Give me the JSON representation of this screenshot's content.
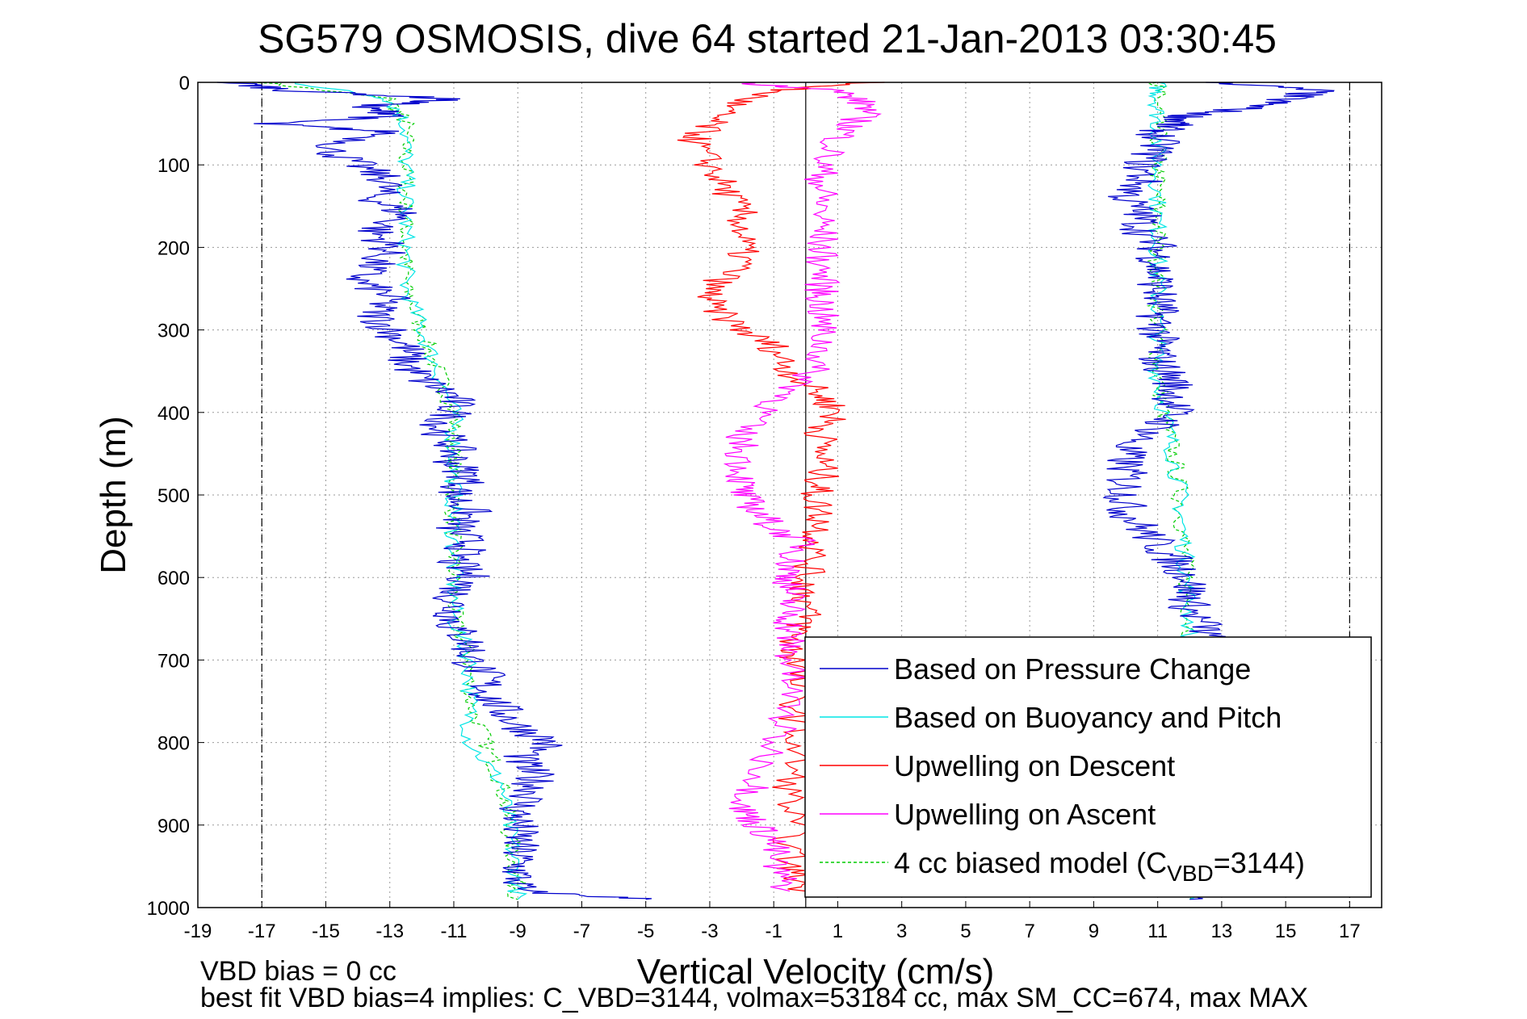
{
  "chart_data": {
    "type": "line",
    "title": "SG579 OSMOSIS, dive 64 started 21-Jan-2013 03:30:45",
    "xlabel": "Vertical Velocity (cm/s)",
    "ylabel": "Depth (m)",
    "xlim": [
      -19,
      18
    ],
    "ylim": [
      0,
      1000
    ],
    "y_reversed": true,
    "x_ticks": [
      -19,
      -17,
      -15,
      -13,
      -11,
      -9,
      -7,
      -5,
      -3,
      -1,
      1,
      3,
      5,
      7,
      9,
      11,
      13,
      15,
      17
    ],
    "y_ticks": [
      0,
      100,
      200,
      300,
      400,
      500,
      600,
      700,
      800,
      900,
      1000
    ],
    "grid": true,
    "legend_position": "bottom-right",
    "reference_lines": {
      "dash_dot_x": [
        -17,
        17
      ],
      "solid_x": 0
    },
    "series": [
      {
        "name": "Based on Pressure Change",
        "color": "#0000cc",
        "style": "solid",
        "depth": [
          0,
          10,
          20,
          30,
          40,
          50,
          60,
          80,
          100,
          120,
          140,
          160,
          180,
          200,
          220,
          240,
          260,
          280,
          300,
          320,
          340,
          360,
          380,
          400,
          420,
          440,
          460,
          480,
          500,
          520,
          540,
          560,
          580,
          600,
          620,
          640,
          660,
          680,
          700,
          720,
          740,
          760,
          780,
          800,
          820,
          840,
          860,
          880,
          900,
          920,
          940,
          960,
          980,
          990
        ],
        "descent": [
          -18,
          -16,
          -11,
          -14,
          -12.5,
          -17,
          -13,
          -15,
          -14,
          -13,
          -13.5,
          -12.5,
          -13.5,
          -13,
          -13.5,
          -14,
          -13,
          -13.5,
          -13,
          -12.5,
          -12.5,
          -12,
          -11,
          -11,
          -11.5,
          -11,
          -11,
          -10.5,
          -11,
          -10.5,
          -11,
          -10.5,
          -11,
          -10.5,
          -11,
          -11,
          -11,
          -10.5,
          -10.5,
          -10,
          -10,
          -9.5,
          -9,
          -8,
          -9,
          -8.5,
          -8.5,
          -9,
          -9,
          -9,
          -9,
          -9,
          -9,
          -5
        ],
        "ascent": [
          13,
          16,
          15,
          14,
          12,
          11.5,
          11,
          11,
          10.5,
          10.5,
          10,
          10.5,
          10.5,
          11,
          11,
          11,
          11,
          11,
          11,
          11,
          11,
          11.5,
          11.5,
          11.5,
          11,
          10,
          10,
          10,
          10,
          10,
          10.5,
          11,
          11.5,
          12,
          12,
          12,
          12.5,
          12.5,
          12.5,
          12.5,
          12.5,
          12.5,
          12.5,
          12.5,
          12.5,
          12.5,
          12.5,
          12.5,
          12.5,
          12.5,
          12.5,
          12.5,
          12.5,
          12
        ]
      },
      {
        "name": "Based on Buoyancy and Pitch",
        "color": "#00e5e5",
        "style": "solid",
        "depth": [
          0,
          20,
          50,
          100,
          150,
          200,
          250,
          300,
          350,
          400,
          450,
          500,
          550,
          600,
          650,
          700,
          750,
          800,
          850,
          900,
          950,
          990
        ],
        "descent": [
          -16,
          -13,
          -12.5,
          -12.5,
          -12.5,
          -12.5,
          -12.5,
          -12,
          -11.5,
          -11,
          -11,
          -11,
          -11,
          -11,
          -11,
          -10.5,
          -10.5,
          -10.5,
          -9.5,
          -9.3,
          -9.1,
          -9
        ],
        "ascent": [
          11,
          11,
          11,
          11,
          11,
          11,
          11,
          11,
          11,
          11.2,
          11.5,
          11.7,
          11.8,
          11.9,
          12,
          12,
          12,
          12,
          12,
          12,
          12,
          12
        ]
      },
      {
        "name": "Upwelling on Descent",
        "color": "#ff0000",
        "style": "solid",
        "depth": [
          0,
          10,
          30,
          50,
          70,
          100,
          130,
          160,
          190,
          220,
          250,
          270,
          300,
          320,
          350,
          380,
          400,
          420,
          450,
          480,
          500,
          530,
          560,
          600,
          620,
          650,
          680,
          700,
          750,
          800,
          850,
          900,
          950,
          980
        ],
        "values": [
          2,
          -1,
          -2.5,
          -3,
          -3.5,
          -3,
          -2.5,
          -2,
          -2,
          -2,
          -3,
          -3,
          -2,
          -1,
          -0.5,
          0.5,
          1,
          0.5,
          0.5,
          0.5,
          0.3,
          0.5,
          0.3,
          0,
          0,
          0,
          -0.5,
          -0.3,
          -0.3,
          -0.3,
          -0.5,
          -0.5,
          -0.5,
          0
        ]
      },
      {
        "name": "Upwelling on Ascent",
        "color": "#ff00ff",
        "style": "solid",
        "depth": [
          0,
          10,
          30,
          50,
          70,
          100,
          130,
          160,
          190,
          220,
          250,
          270,
          300,
          330,
          360,
          390,
          420,
          450,
          480,
          500,
          520,
          540,
          560,
          580,
          600,
          620,
          640,
          660,
          680,
          700,
          750,
          800,
          850,
          880,
          900,
          920,
          950,
          980
        ],
        "values": [
          -2,
          1,
          2,
          1.5,
          1,
          0.5,
          0.5,
          0.5,
          0.5,
          0.5,
          0.5,
          0.5,
          0.5,
          0.5,
          0,
          -1,
          -2,
          -2,
          -2,
          -2,
          -1.5,
          -1,
          0,
          -0.5,
          -0.5,
          -0.5,
          -0.5,
          -0.5,
          -0.5,
          -0.5,
          -0.5,
          -1,
          -1.5,
          -2,
          -1.5,
          -1,
          -1,
          -0.5
        ]
      },
      {
        "name": "4 cc biased model (C",
        "subscript": "VBD",
        "suffix": "=3144)",
        "color": "#00cc00",
        "style": "dashed",
        "depth": [
          0,
          20,
          50,
          100,
          150,
          200,
          250,
          300,
          350,
          400,
          450,
          500,
          550,
          600,
          650,
          700,
          750,
          800,
          850,
          900,
          950,
          990
        ],
        "descent": [
          -17,
          -13,
          -12.5,
          -12.5,
          -12.5,
          -12.5,
          -12.5,
          -12,
          -11.5,
          -11,
          -11,
          -11,
          -11,
          -11,
          -11,
          -10.5,
          -10.5,
          -10,
          -9.5,
          -9.3,
          -9.1,
          -9
        ],
        "ascent": [
          11,
          11,
          11,
          11,
          11,
          11,
          11,
          11,
          11,
          11.2,
          11.5,
          11.7,
          11.8,
          11.9,
          12,
          12,
          12,
          12,
          12,
          12,
          12,
          12
        ]
      }
    ],
    "footer_lines": [
      "VBD bias = 0 cc",
      "best fit VBD bias=4 implies: C_VBD=3144, volmax=53184 cc, max SM_CC=674, max MAX"
    ]
  }
}
